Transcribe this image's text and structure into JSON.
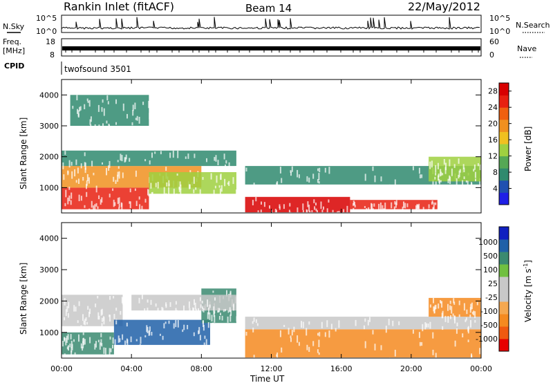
{
  "header": {
    "station": "Rankin Inlet (fitACF)",
    "beam": "Beam 14",
    "date": "22/May/2012"
  },
  "colors": {
    "power_scale": [
      "#1f1fe6",
      "#2050b0",
      "#2f8a6e",
      "#55a855",
      "#9fd040",
      "#f0c020",
      "#f09020",
      "#f06010",
      "#e82010",
      "#d80000"
    ],
    "velocity_scale": [
      "#e80000",
      "#f05a10",
      "#f58a20",
      "#f5a850",
      "#c8c8c8",
      "#c8c8c8",
      "#70c040",
      "#3a8a70",
      "#2060a8",
      "#1020c0"
    ],
    "ground_scatter": "#c8c8c8"
  },
  "chart_data": [
    {
      "type": "line",
      "panel": "noise",
      "left_label": "N.Sky",
      "right_label": "N.Search",
      "left_ticks": [
        "10^5",
        "10^0"
      ],
      "right_ticks": [
        "10^5",
        "10^0"
      ],
      "log_scale": true,
      "ylim": [
        1,
        100000
      ]
    },
    {
      "type": "line",
      "panel": "frequency",
      "left_label": "Freq.",
      "left_unit": "[MHz]",
      "right_label": "Nave",
      "left_ticks": [
        "18",
        "8"
      ],
      "right_ticks": [
        "60",
        "0"
      ],
      "ylim_left": [
        8,
        18
      ],
      "ylim_right": [
        0,
        60
      ]
    },
    {
      "type": "table",
      "panel": "cpid",
      "label": "CPID",
      "value": "twofsound 3501"
    },
    {
      "type": "heatmap",
      "panel": "power",
      "ylabel": "Slant Range [km]",
      "yticks": [
        "1000",
        "2000",
        "3000",
        "4000"
      ],
      "ylim": [
        180,
        4500
      ],
      "colorbar_label": "Power [dB]",
      "colorbar_ticks": [
        "4",
        "8",
        "12",
        "16",
        "20",
        "24",
        "28"
      ],
      "clim": [
        0,
        30
      ],
      "bands": [
        {
          "start_h": 0.0,
          "end_h": 5.0,
          "range_km": [
            300,
            1000
          ],
          "level": 26
        },
        {
          "start_h": 0.0,
          "end_h": 8.0,
          "range_km": [
            1000,
            1700
          ],
          "level": 18
        },
        {
          "start_h": 0.0,
          "end_h": 10.0,
          "range_km": [
            1700,
            2200
          ],
          "level": 8
        },
        {
          "start_h": 5.0,
          "end_h": 10.0,
          "range_km": [
            800,
            1500
          ],
          "level": 12
        },
        {
          "start_h": 10.5,
          "end_h": 16.5,
          "range_km": [
            200,
            700
          ],
          "level": 28
        },
        {
          "start_h": 10.5,
          "end_h": 24.0,
          "range_km": [
            1100,
            1700
          ],
          "level": 8
        },
        {
          "start_h": 16.5,
          "end_h": 21.5,
          "range_km": [
            300,
            600
          ],
          "level": 26
        },
        {
          "start_h": 0.5,
          "end_h": 5.0,
          "range_km": [
            3000,
            4000
          ],
          "level": 6
        },
        {
          "start_h": 21.0,
          "end_h": 24.0,
          "range_km": [
            1200,
            2000
          ],
          "level": 14
        }
      ]
    },
    {
      "type": "heatmap",
      "panel": "velocity",
      "ylabel": "Slant Range [km]",
      "yticks": [
        "1000",
        "2000",
        "3000",
        "4000"
      ],
      "ylim": [
        180,
        4500
      ],
      "xlabel": "Time UT",
      "xticks": [
        "00:00",
        "04:00",
        "08:00",
        "12:00",
        "16:00",
        "20:00",
        "00:00"
      ],
      "xlim": [
        0,
        24
      ],
      "colorbar_label": "Velocity [m s^-1]",
      "colorbar_ticks": [
        "1000",
        "500",
        "100",
        "25",
        "-25",
        "-100",
        "-500",
        "-1000"
      ],
      "bands": [
        {
          "start_h": 0.0,
          "end_h": 3.5,
          "range_km": [
            1200,
            2200
          ],
          "velocity": 0
        },
        {
          "start_h": 0.0,
          "end_h": 3.0,
          "range_km": [
            300,
            1000
          ],
          "velocity": 150
        },
        {
          "start_h": 3.0,
          "end_h": 8.5,
          "range_km": [
            600,
            1400
          ],
          "velocity": 700
        },
        {
          "start_h": 8.0,
          "end_h": 10.0,
          "range_km": [
            1300,
            2400
          ],
          "velocity": 300
        },
        {
          "start_h": 4.0,
          "end_h": 10.0,
          "range_km": [
            1700,
            2200
          ],
          "velocity": 0
        },
        {
          "start_h": 10.5,
          "end_h": 24.0,
          "range_km": [
            200,
            1100
          ],
          "velocity": -300
        },
        {
          "start_h": 10.5,
          "end_h": 24.0,
          "range_km": [
            1100,
            1500
          ],
          "velocity": 0
        },
        {
          "start_h": 21.0,
          "end_h": 24.0,
          "range_km": [
            1500,
            2100
          ],
          "velocity": -200
        }
      ]
    }
  ]
}
